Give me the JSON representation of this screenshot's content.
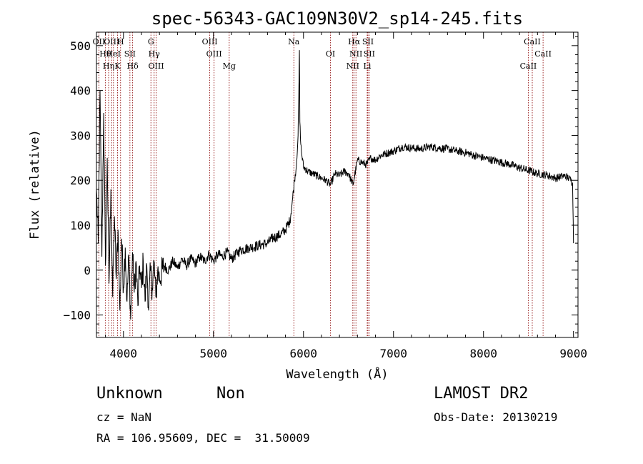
{
  "chart_data": {
    "type": "line",
    "title": "spec-56343-GAC109N30V2_sp14-245.fits",
    "xlabel": "Wavelength (Å)",
    "ylabel": "Flux (relative)",
    "xlim": [
      3700,
      9050
    ],
    "ylim": [
      -150,
      530
    ],
    "xticks": [
      4000,
      5000,
      6000,
      7000,
      8000,
      9000
    ],
    "yticks": [
      -100,
      0,
      100,
      200,
      300,
      400,
      500
    ],
    "grid": false,
    "series": [
      {
        "values": [
          [
            3700,
            180
          ],
          [
            3720,
            60
          ],
          [
            3740,
            400
          ],
          [
            3760,
            30
          ],
          [
            3780,
            350
          ],
          [
            3800,
            10
          ],
          [
            3820,
            250
          ],
          [
            3840,
            -30
          ],
          [
            3860,
            180
          ],
          [
            3880,
            -60
          ],
          [
            3900,
            120
          ],
          [
            3920,
            -20
          ],
          [
            3940,
            90
          ],
          [
            3960,
            -90
          ],
          [
            3980,
            70
          ],
          [
            4000,
            -40
          ],
          [
            4020,
            50
          ],
          [
            4040,
            -70
          ],
          [
            4060,
            30
          ],
          [
            4080,
            -110
          ],
          [
            4100,
            40
          ],
          [
            4120,
            -50
          ],
          [
            4140,
            20
          ],
          [
            4160,
            -80
          ],
          [
            4180,
            10
          ],
          [
            4200,
            -40
          ],
          [
            4220,
            20
          ],
          [
            4240,
            -70
          ],
          [
            4260,
            10
          ],
          [
            4280,
            -90
          ],
          [
            4300,
            0
          ],
          [
            4320,
            -40
          ],
          [
            4340,
            20
          ],
          [
            4360,
            -60
          ],
          [
            4380,
            0
          ],
          [
            4400,
            -20
          ],
          [
            4450,
            10
          ],
          [
            4500,
            0
          ],
          [
            4550,
            20
          ],
          [
            4600,
            5
          ],
          [
            4650,
            25
          ],
          [
            4700,
            10
          ],
          [
            4750,
            25
          ],
          [
            4800,
            15
          ],
          [
            4850,
            30
          ],
          [
            4900,
            20
          ],
          [
            4950,
            35
          ],
          [
            5000,
            20
          ],
          [
            5050,
            35
          ],
          [
            5100,
            30
          ],
          [
            5150,
            40
          ],
          [
            5200,
            25
          ],
          [
            5300,
            45
          ],
          [
            5400,
            50
          ],
          [
            5500,
            55
          ],
          [
            5600,
            60
          ],
          [
            5650,
            70
          ],
          [
            5700,
            75
          ],
          [
            5750,
            80
          ],
          [
            5800,
            90
          ],
          [
            5850,
            110
          ],
          [
            5880,
            160
          ],
          [
            5900,
            200
          ],
          [
            5920,
            230
          ],
          [
            5940,
            300
          ],
          [
            5950,
            420
          ],
          [
            5955,
            490
          ],
          [
            5960,
            330
          ],
          [
            5970,
            280
          ],
          [
            5980,
            260
          ],
          [
            6000,
            230
          ],
          [
            6050,
            220
          ],
          [
            6100,
            215
          ],
          [
            6150,
            210
          ],
          [
            6200,
            205
          ],
          [
            6250,
            200
          ],
          [
            6300,
            190
          ],
          [
            6350,
            215
          ],
          [
            6400,
            210
          ],
          [
            6450,
            220
          ],
          [
            6500,
            215
          ],
          [
            6550,
            190
          ],
          [
            6600,
            245
          ],
          [
            6650,
            240
          ],
          [
            6700,
            235
          ],
          [
            6750,
            250
          ],
          [
            6800,
            245
          ],
          [
            6850,
            255
          ],
          [
            6900,
            258
          ],
          [
            6950,
            262
          ],
          [
            7000,
            265
          ],
          [
            7100,
            275
          ],
          [
            7200,
            272
          ],
          [
            7300,
            270
          ],
          [
            7400,
            275
          ],
          [
            7500,
            272
          ],
          [
            7600,
            270
          ],
          [
            7700,
            265
          ],
          [
            7800,
            262
          ],
          [
            7900,
            255
          ],
          [
            8000,
            250
          ],
          [
            8100,
            245
          ],
          [
            8200,
            240
          ],
          [
            8300,
            235
          ],
          [
            8400,
            228
          ],
          [
            8500,
            222
          ],
          [
            8600,
            215
          ],
          [
            8700,
            212
          ],
          [
            8800,
            205
          ],
          [
            8900,
            210
          ],
          [
            8950,
            205
          ],
          [
            8990,
            195
          ],
          [
            9000,
            60
          ]
        ]
      }
    ],
    "lines": [
      {
        "label": "OII",
        "x": 3727
      },
      {
        "label": "Hθ",
        "x": 3798
      },
      {
        "label": "Hη",
        "x": 3835
      },
      {
        "label": "OIII",
        "x": 3869
      },
      {
        "label": "HeI",
        "x": 3889
      },
      {
        "label": "K",
        "x": 3934
      },
      {
        "label": "H",
        "x": 3968
      },
      {
        "label": "SII",
        "x": 4072
      },
      {
        "label": "Hδ",
        "x": 4102
      },
      {
        "label": "G",
        "x": 4305
      },
      {
        "label": "Hγ",
        "x": 4341
      },
      {
        "label": "OIII",
        "x": 4363
      },
      {
        "label": "OIII",
        "x": 4959
      },
      {
        "label": "OIII",
        "x": 5007
      },
      {
        "label": "Mg",
        "x": 5175
      },
      {
        "label": "Na",
        "x": 5893
      },
      {
        "label": "OI",
        "x": 6300
      },
      {
        "label": "NII",
        "x": 6548
      },
      {
        "label": "Hα",
        "x": 6563
      },
      {
        "label": "NII",
        "x": 6583
      },
      {
        "label": "Li",
        "x": 6708
      },
      {
        "label": "SII",
        "x": 6716
      },
      {
        "label": "SII",
        "x": 6731
      },
      {
        "label": "CaII",
        "x": 8498
      },
      {
        "label": "CaII",
        "x": 8542
      },
      {
        "label": "CaII",
        "x": 8662
      }
    ]
  },
  "info": {
    "class": "Unknown",
    "subclass": "Non",
    "survey": "LAMOST DR2",
    "cz": "cz = NaN",
    "obs_date": "Obs-Date: 20130219",
    "coords": "RA = 106.95609, DEC =  31.50009"
  }
}
